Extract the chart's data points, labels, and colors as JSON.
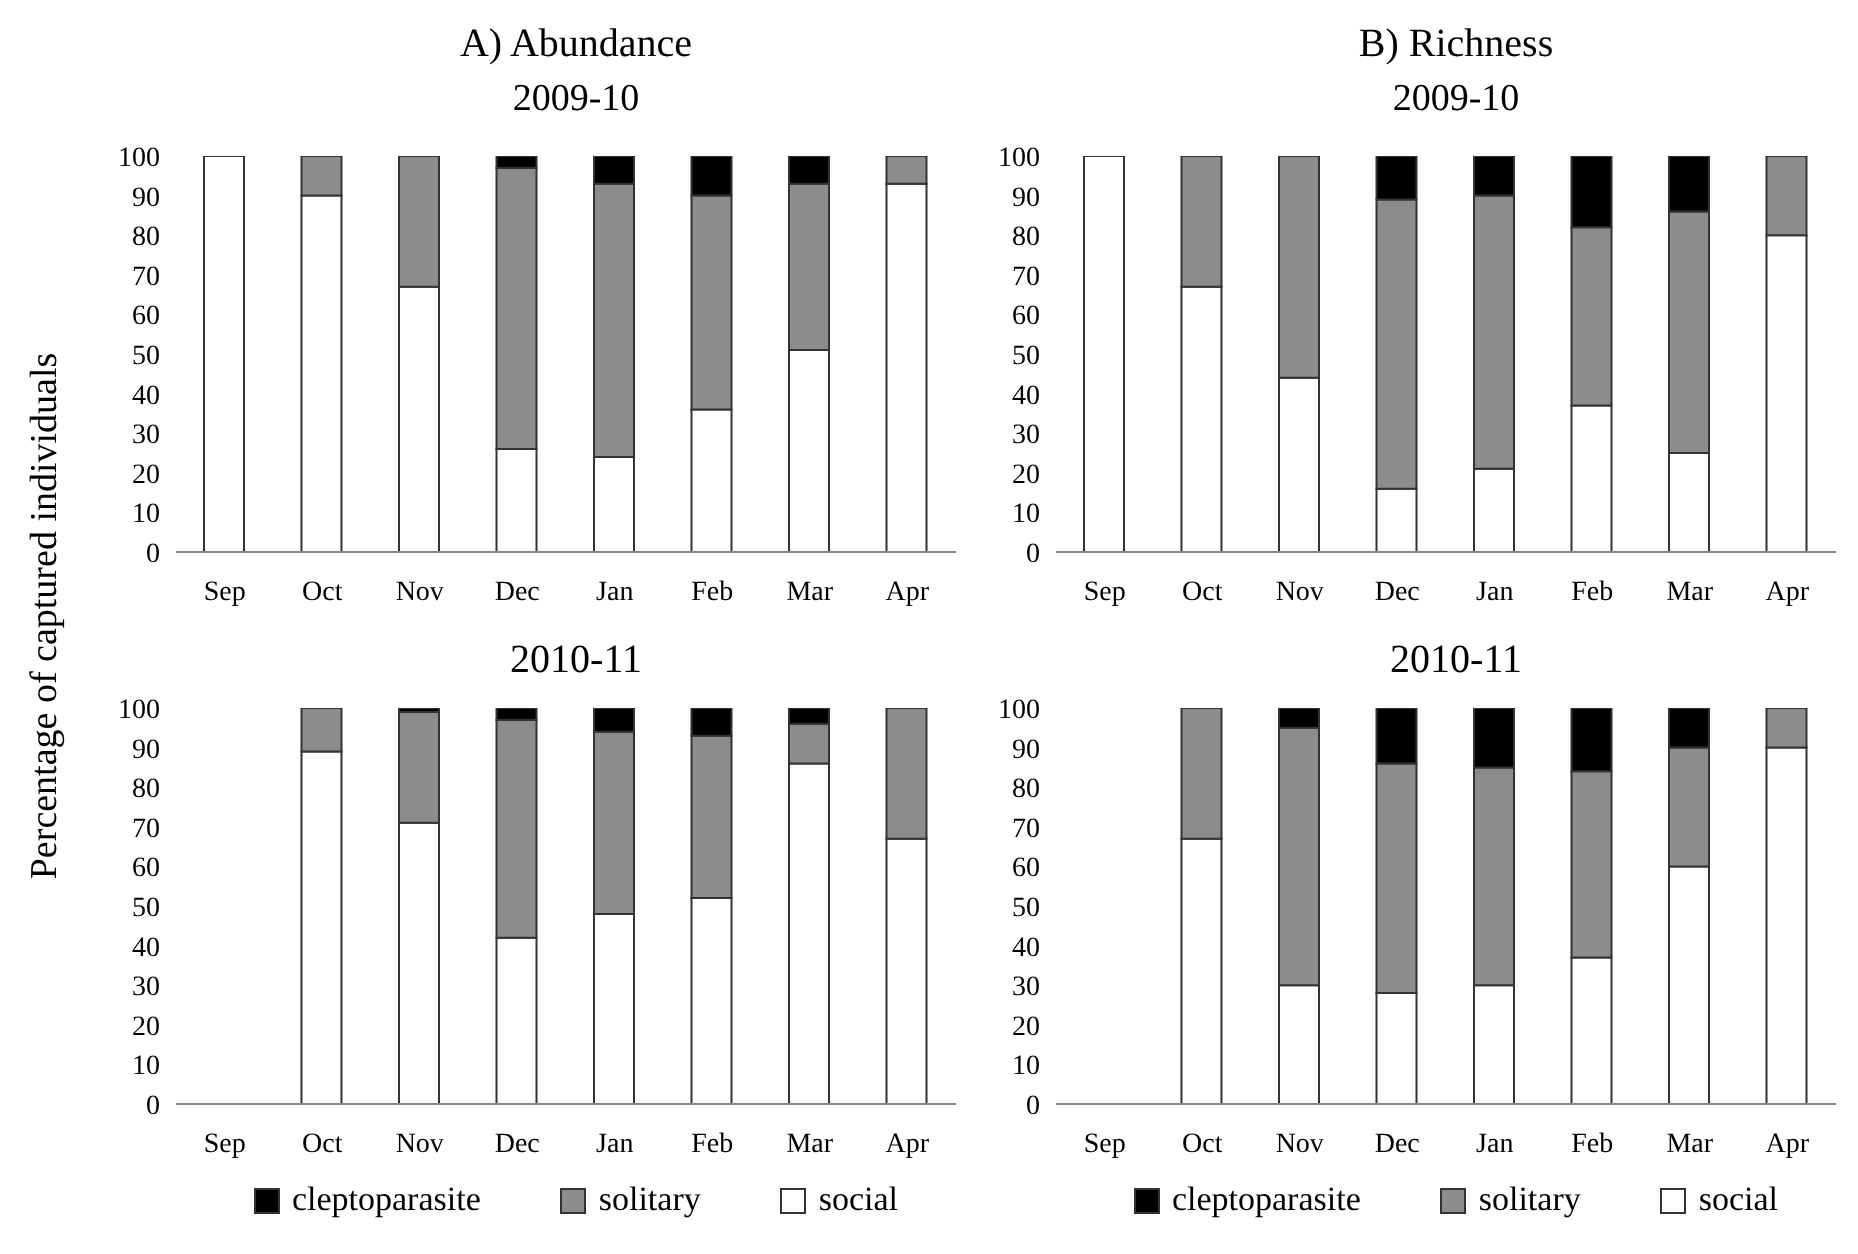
{
  "chart_data": [
    {
      "type": "bar",
      "title": "A) Abundance",
      "subtitle": "2009-10",
      "ylabel": "Percentage of captured individuals",
      "stacked": true,
      "categories": [
        "Sep",
        "Oct",
        "Nov",
        "Dec",
        "Jan",
        "Feb",
        "Mar",
        "Apr"
      ],
      "ylim": [
        0,
        100
      ],
      "yticks": [
        0,
        10,
        20,
        30,
        40,
        50,
        60,
        70,
        80,
        90,
        100
      ],
      "grid": false,
      "legend": false,
      "series": [
        {
          "color": "#ffffff",
          "values": [
            100,
            90,
            67,
            26,
            24,
            36,
            51,
            93
          ]
        },
        {
          "color": "#8c8c8c",
          "values": [
            0,
            10,
            33,
            71,
            69,
            54,
            42,
            7
          ]
        },
        {
          "color": "#000000",
          "values": [
            0,
            0,
            0,
            3,
            7,
            10,
            7,
            0
          ]
        }
      ]
    },
    {
      "type": "bar",
      "title": "B) Richness",
      "subtitle": "2009-10",
      "stacked": true,
      "categories": [
        "Sep",
        "Oct",
        "Nov",
        "Dec",
        "Jan",
        "Feb",
        "Mar",
        "Apr"
      ],
      "ylim": [
        0,
        100
      ],
      "yticks": [
        0,
        10,
        20,
        30,
        40,
        50,
        60,
        70,
        80,
        90,
        100
      ],
      "grid": false,
      "legend": false,
      "series": [
        {
          "color": "#ffffff",
          "values": [
            100,
            67,
            44,
            16,
            21,
            37,
            25,
            80
          ]
        },
        {
          "color": "#8c8c8c",
          "values": [
            0,
            33,
            56,
            73,
            69,
            45,
            61,
            20
          ]
        },
        {
          "color": "#000000",
          "values": [
            0,
            0,
            0,
            11,
            10,
            18,
            14,
            0
          ]
        }
      ]
    },
    {
      "type": "bar",
      "title": "2010-11",
      "stacked": true,
      "categories": [
        "Sep",
        "Oct",
        "Nov",
        "Dec",
        "Jan",
        "Feb",
        "Mar",
        "Apr"
      ],
      "ylim": [
        0,
        100
      ],
      "yticks": [
        0,
        10,
        20,
        30,
        40,
        50,
        60,
        70,
        80,
        90,
        100
      ],
      "grid": false,
      "legend": "bottom",
      "series": [
        {
          "name": "social",
          "color": "#ffffff",
          "values": [
            null,
            89,
            71,
            42,
            48,
            52,
            86,
            67
          ]
        },
        {
          "name": "solitary",
          "color": "#8c8c8c",
          "values": [
            null,
            11,
            28,
            55,
            46,
            41,
            10,
            33
          ]
        },
        {
          "name": "cleptoparasite",
          "color": "#000000",
          "values": [
            null,
            0,
            1,
            3,
            6,
            7,
            4,
            0
          ]
        }
      ]
    },
    {
      "type": "bar",
      "title": "2010-11",
      "stacked": true,
      "categories": [
        "Sep",
        "Oct",
        "Nov",
        "Dec",
        "Jan",
        "Feb",
        "Mar",
        "Apr"
      ],
      "ylim": [
        0,
        100
      ],
      "yticks": [
        0,
        10,
        20,
        30,
        40,
        50,
        60,
        70,
        80,
        90,
        100
      ],
      "grid": false,
      "legend": "bottom",
      "series": [
        {
          "name": "social",
          "color": "#ffffff",
          "values": [
            null,
            67,
            30,
            28,
            30,
            37,
            60,
            90
          ]
        },
        {
          "name": "solitary",
          "color": "#8c8c8c",
          "values": [
            null,
            33,
            65,
            58,
            55,
            47,
            30,
            10
          ]
        },
        {
          "name": "cleptoparasite",
          "color": "#000000",
          "values": [
            null,
            0,
            5,
            14,
            15,
            16,
            10,
            0
          ]
        }
      ]
    }
  ]
}
